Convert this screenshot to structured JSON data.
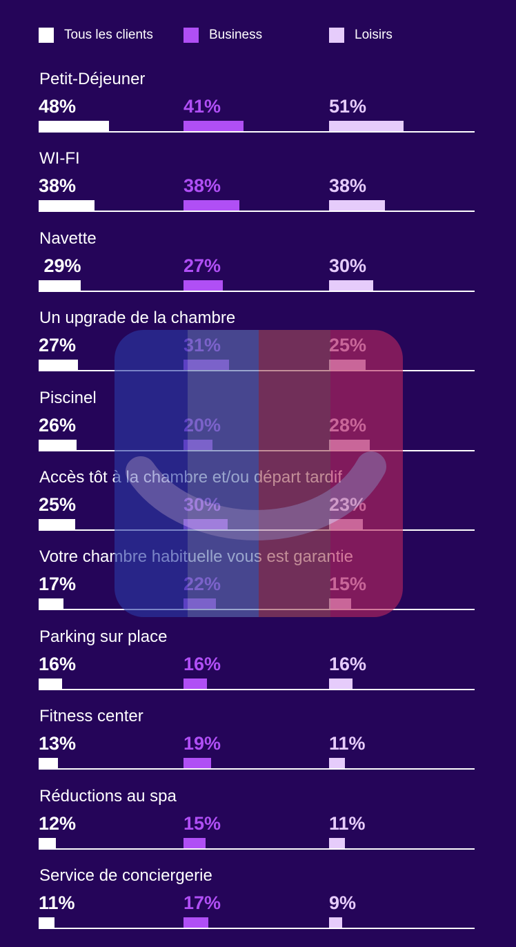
{
  "colors": {
    "background": "#250559",
    "tous": "#ffffff",
    "business": "#b04ff5",
    "loisirs": "#e6ccfb",
    "baseline": "#ffffff"
  },
  "legend": [
    {
      "label": "Tous les clients",
      "color": "#ffffff"
    },
    {
      "label": "Business",
      "color": "#b04ff5"
    },
    {
      "label": "Loisirs",
      "color": "#e6ccfb"
    }
  ],
  "watermark": {
    "icon": "smile-logo-icon",
    "colors": [
      "#2a3aa6",
      "#5c6fb0",
      "#a04a5a",
      "#b8285e"
    ]
  },
  "chart_data": {
    "type": "bar",
    "orientation": "horizontal",
    "categories": [
      "Petit-Déjeuner",
      "WI-FI",
      "Navette",
      "Un upgrade de la chambre",
      "Piscinel",
      "Accès tôt à la chambre et/ou départ tardif",
      "Votre chambre habituelle vous est garantie",
      "Parking sur place",
      "Fitness center",
      "Réductions au spa",
      "Service de conciergerie"
    ],
    "series": [
      {
        "name": "Tous les clients",
        "values": [
          48,
          38,
          29,
          27,
          26,
          25,
          17,
          16,
          13,
          12,
          11
        ],
        "labels": [
          "48%",
          "38%",
          " 29%",
          "27%",
          "26%",
          "25%",
          "17%",
          "16%",
          "13%",
          "12%",
          "11%"
        ]
      },
      {
        "name": "Business",
        "values": [
          41,
          38,
          27,
          31,
          20,
          30,
          22,
          16,
          19,
          15,
          17
        ],
        "labels": [
          "41%",
          "38%",
          "27%",
          "31%",
          "20%",
          "30%",
          "22%",
          "16%",
          "19%",
          "15%",
          "17%"
        ]
      },
      {
        "name": "Loisirs",
        "values": [
          51,
          38,
          30,
          25,
          28,
          23,
          15,
          16,
          11,
          11,
          9
        ],
        "labels": [
          "51%",
          "38%",
          "30%",
          "25%",
          "28%",
          "23%",
          "15%",
          "16%",
          "11%",
          "11%",
          "9%"
        ]
      }
    ],
    "unit": "%",
    "grid": false,
    "legend_position": "top"
  }
}
